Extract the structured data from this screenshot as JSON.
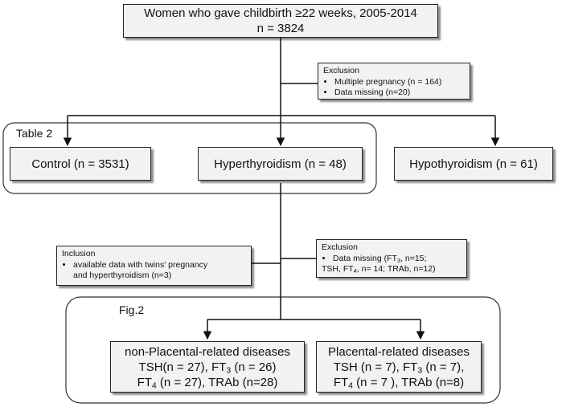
{
  "top_box": {
    "line1": "Women who gave childbirth ≥22 weeks, 2005-2014",
    "line2": "n = 3824"
  },
  "exclusion_1": {
    "title": "Exclusion",
    "items": [
      "Multiple pregnancy (n = 164)",
      "Data missing (n=20)"
    ]
  },
  "group_table2": {
    "label": "Table 2"
  },
  "control_box": {
    "label": "Control (n = 3531)"
  },
  "hyper_box": {
    "label": "Hyperthyroidism (n = 48)"
  },
  "hypo_box": {
    "label": "Hypothyroidism (n = 61)"
  },
  "inclusion": {
    "title": "Inclusion",
    "line1": "available data with twins' pregnancy",
    "line2": "and hyperthyroidism (n=3)"
  },
  "exclusion_2": {
    "title": "Exclusion",
    "ft3_prefix": "Data missing (FT",
    "ft3_sub": "3",
    "ft3_suffix": ", n=15;",
    "line2_prefix": "TSH, FT",
    "line2_sub": "4",
    "line2_suffix": ", n= 14; TRAb, n=12)"
  },
  "group_fig2": {
    "label": "Fig.2"
  },
  "non_placental": {
    "title": "non-Placental-related diseases",
    "l2_a": "TSH(n = 27), FT",
    "l2_sub": "3",
    "l2_b": " (n = 26)",
    "l3_a": "FT",
    "l3_sub": "4",
    "l3_b": " (n = 27), TRAb (n=28)"
  },
  "placental": {
    "title": "Placental-related diseases",
    "l2_a": "TSH (n = 7), FT",
    "l2_sub": "3",
    "l2_b": " (n = 7),",
    "l3_a": "FT",
    "l3_sub": "4",
    "l3_b": " (n = 7 ), TRAb (n=8)"
  },
  "colors": {
    "box_fill": "#f2f2f2",
    "stroke": "#222222"
  }
}
